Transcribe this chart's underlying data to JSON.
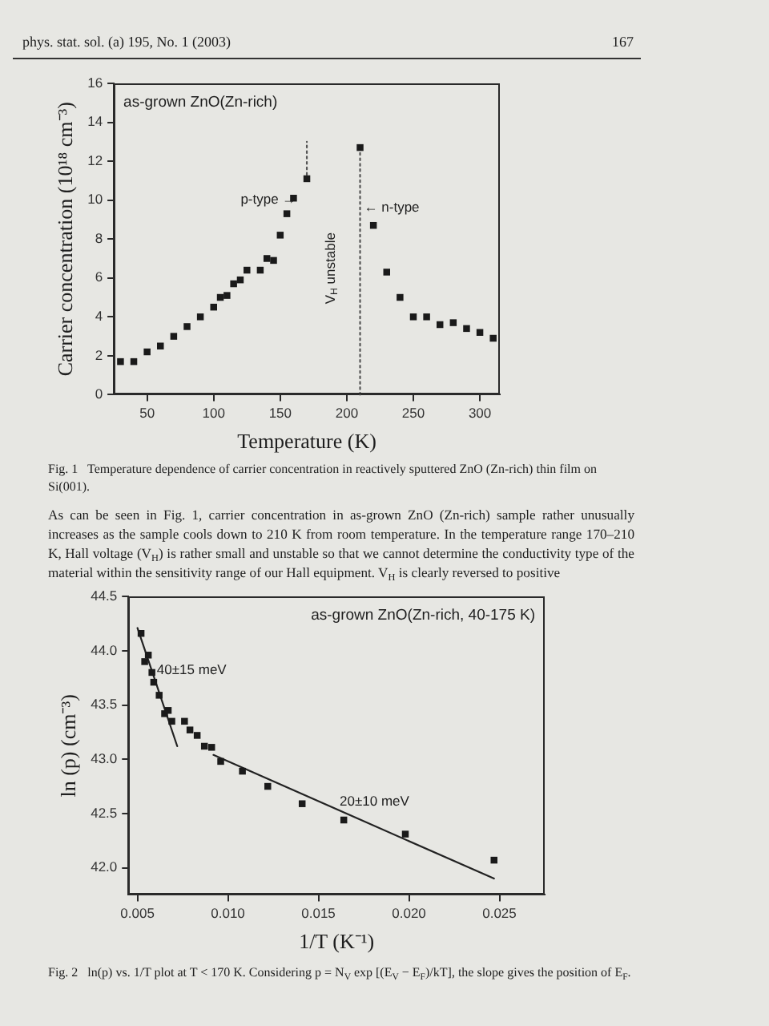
{
  "chart_data": [
    {
      "type": "scatter",
      "title": "as-grown ZnO(Zn-rich)",
      "xlabel": "Temperature (K)",
      "ylabel": "Carrier concentration (10¹⁸ cm⁻³)",
      "xlim": [
        25,
        315
      ],
      "xticks": [
        50,
        100,
        150,
        200,
        250,
        300
      ],
      "ylim": [
        0,
        16
      ],
      "yticks": [
        0,
        2,
        4,
        6,
        8,
        10,
        12,
        14,
        16
      ],
      "marker": "square",
      "series": [
        {
          "color": "#1a1a1a",
          "x": [
            30,
            40,
            50,
            60,
            70,
            80,
            90,
            100,
            105,
            110,
            115,
            120,
            125,
            135,
            140,
            145,
            150,
            155,
            160,
            170,
            210,
            220,
            230,
            240,
            250,
            260,
            270,
            280,
            290,
            300,
            310
          ],
          "values": [
            1.7,
            1.7,
            2.2,
            2.5,
            3.0,
            3.5,
            4.0,
            4.5,
            5.0,
            5.1,
            5.7,
            5.9,
            6.4,
            6.4,
            7.0,
            6.9,
            8.2,
            9.3,
            10.1,
            11.1,
            12.7,
            8.7,
            6.3,
            5.0,
            4.0,
            4.0,
            3.6,
            3.7,
            3.4,
            3.2,
            2.9
          ]
        },
        {
          "type": "line",
          "color": "#555555",
          "line_style": "dotted",
          "marker": "none",
          "x": [
            170,
            170
          ],
          "values": [
            11.3,
            13.0
          ]
        },
        {
          "type": "line",
          "color": "#555555",
          "line_style": "dotted",
          "marker": "none",
          "x": [
            210,
            210
          ],
          "values": [
            0,
            12.5
          ]
        }
      ],
      "annotations": [
        "phys. stat. sol. (a) 195, No. 1 (2003)",
        "167",
        "p-type →",
        "← n-type",
        "V$_{H}$ unstable",
        "Fig. 1   Temperature dependence of carrier concentration in reactively sputtered ZnO (Zn-rich) thin film on Si(001).",
        "As can be seen in Fig. 1, carrier concentration in as-grown ZnO (Zn-rich) sample rather unusually increases as the sample cools down to 210 K from room temperature. In the temperature range 170–210 K, Hall voltage (V$_{H}$) is rather small and unstable so that we cannot determine the conductivity type of the material within the sensitivity range of our Hall equipment. V$_{H}$ is clearly reversed to positive"
      ]
    },
    {
      "type": "scatter",
      "title": "as-grown ZnO(Zn-rich, 40-175 K)",
      "xlabel": "1/T (K⁻¹)",
      "ylabel": "ln (p) (cm⁻³)",
      "xlim": [
        0.0045,
        0.0275
      ],
      "xticks": [
        0.005,
        {
          "value": 0.01,
          "label": "0.010"
        },
        0.015,
        {
          "value": 0.02,
          "label": "0.020"
        },
        0.025
      ],
      "ylim": [
        41.75,
        44.5
      ],
      "yticks": [
        {
          "value": 42,
          "label": "42.0"
        },
        42.5,
        {
          "value": 43,
          "label": "43.0"
        },
        43.5,
        {
          "value": 44,
          "label": "44.0"
        },
        44.5
      ],
      "marker": "square",
      "series": [
        {
          "color": "#1a1a1a",
          "x": [
            0.0052,
            0.0054,
            0.0056,
            0.0058,
            0.0059,
            0.0062,
            0.0065,
            0.0067,
            0.0069,
            0.0076,
            0.0079,
            0.0083,
            0.0087,
            0.0091,
            0.0096,
            0.0108,
            0.0122,
            0.0141,
            0.0164,
            0.0198,
            0.0247
          ],
          "values": [
            44.16,
            43.9,
            43.96,
            43.8,
            43.71,
            43.59,
            43.42,
            43.45,
            43.35,
            43.35,
            43.27,
            43.22,
            43.12,
            43.11,
            42.98,
            42.89,
            42.75,
            42.59,
            42.44,
            42.31,
            42.07
          ]
        },
        {
          "type": "line",
          "color": "#222222",
          "line_style": "solid",
          "marker": "none",
          "x": [
            0.005,
            0.0072
          ],
          "values": [
            44.21,
            43.12
          ]
        },
        {
          "type": "line",
          "color": "#222222",
          "line_style": "solid",
          "marker": "none",
          "x": [
            0.0092,
            0.0247
          ],
          "values": [
            43.04,
            41.9
          ]
        }
      ],
      "annotations": [
        "40±15 meV",
        "20±10 meV",
        "Fig. 2   ln(p) vs. 1/T plot at T < 170 K. Considering p = N$_{V}$ exp [(E$_{V}$ − E$_{F}$)/kT], the slope gives the position of E$_{F}$."
      ]
    }
  ]
}
